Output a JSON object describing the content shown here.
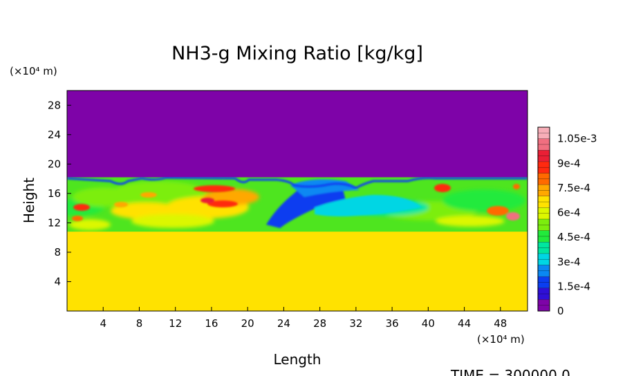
{
  "chart_data": {
    "type": "heatmap",
    "title": "NH3-g Mixing Ratio [kg/kg]",
    "xlabel": "Length",
    "ylabel": "Height",
    "x_unit": "(×10⁴ m)",
    "y_unit": "(×10⁴ m)",
    "xlim": [
      0,
      51
    ],
    "ylim": [
      0,
      30
    ],
    "x_ticks": [
      "4",
      "8",
      "12",
      "16",
      "20",
      "24",
      "28",
      "32",
      "36",
      "40",
      "44",
      "48"
    ],
    "y_ticks": [
      "4",
      "8",
      "12",
      "16",
      "20",
      "24",
      "28"
    ],
    "x_tick_values": [
      4,
      8,
      12,
      16,
      20,
      24,
      28,
      32,
      36,
      40,
      44,
      48
    ],
    "y_tick_values": [
      4,
      8,
      12,
      16,
      20,
      24,
      28
    ],
    "colorbar": {
      "min": 0,
      "max": 0.00112,
      "tick_labels": [
        "1.05e-3",
        "9e-4",
        "7.5e-4",
        "6e-4",
        "4.5e-4",
        "3e-4",
        "1.5e-4",
        "0"
      ],
      "tick_values": [
        0.00105,
        0.0009,
        0.00075,
        0.0006,
        0.00045,
        0.0003,
        0.00015,
        0
      ],
      "colors": [
        "#7e03a8",
        "#2f0fd6",
        "#0b3ef0",
        "#0a88f2",
        "#00d6e4",
        "#00e6a0",
        "#22ea3c",
        "#7cee0e",
        "#dcf700",
        "#ffe200",
        "#ffa800",
        "#ff6a00",
        "#ff2a10",
        "#ea1f35",
        "#f06f80",
        "#f7aeb8"
      ]
    },
    "regions": {
      "top_value": 0,
      "bottom_value": 0.00069,
      "bottom_layer_top_height": 10.8,
      "mixed_layer_top_height": 18.2
    },
    "time_label": "TIME = 300000.0"
  }
}
